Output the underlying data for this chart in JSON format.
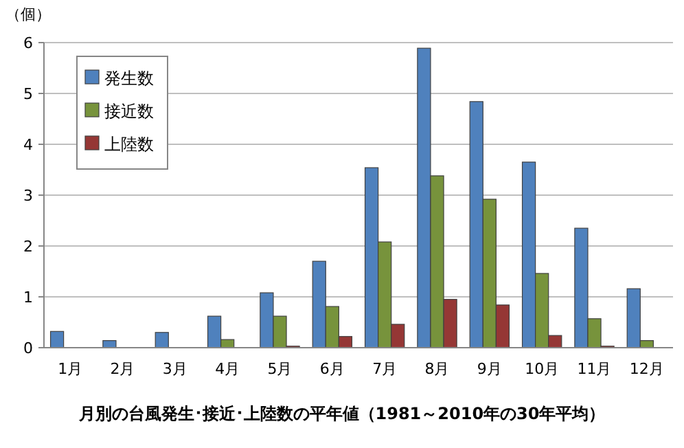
{
  "chart_data": {
    "type": "bar",
    "title": "月別の台風発生･接近･上陸数の平年値（1981～2010年の30年平均）",
    "ylabel": "（個）",
    "categories": [
      "1月",
      "2月",
      "3月",
      "4月",
      "5月",
      "6月",
      "7月",
      "8月",
      "9月",
      "10月",
      "11月",
      "12月"
    ],
    "series": [
      {
        "name": "発生数",
        "color": "#4f81bd",
        "values": [
          0.32,
          0.14,
          0.3,
          0.62,
          1.08,
          1.7,
          3.54,
          5.89,
          4.84,
          3.65,
          2.35,
          1.16
        ]
      },
      {
        "name": "接近数",
        "color": "#77933c",
        "values": [
          0,
          0,
          0,
          0.16,
          0.62,
          0.81,
          2.08,
          3.38,
          2.92,
          1.46,
          0.57,
          0.14
        ]
      },
      {
        "name": "上陸数",
        "color": "#953735",
        "values": [
          0,
          0,
          0,
          0,
          0.03,
          0.22,
          0.46,
          0.95,
          0.84,
          0.24,
          0.03,
          0
        ]
      }
    ],
    "ylim": [
      0,
      6
    ],
    "yticks": [
      0,
      1,
      2,
      3,
      4,
      5,
      6
    ],
    "grid": "y",
    "legend": "top left"
  }
}
